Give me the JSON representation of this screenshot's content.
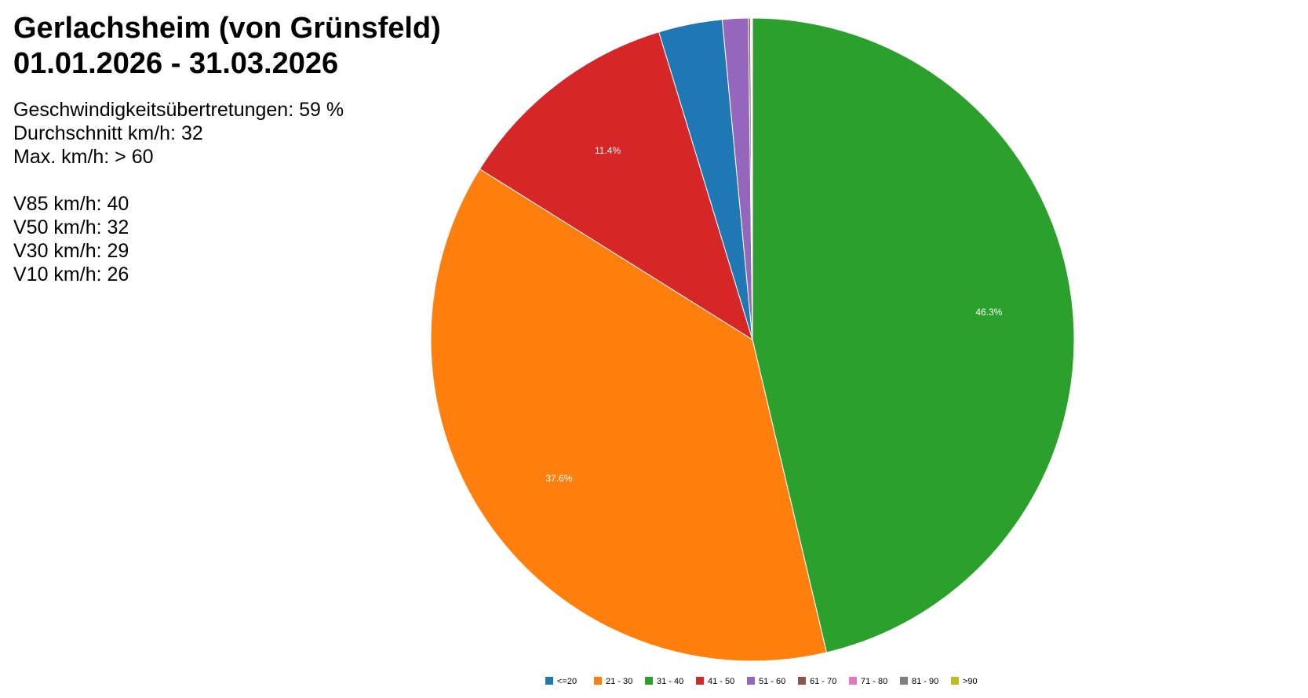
{
  "header": {
    "title_line1": "Gerlachsheim (von Grünsfeld)",
    "title_line2": "01.01.2026 - 31.03.2026"
  },
  "stats": {
    "violations": "Geschwindigkeitsübertretungen: 59 %",
    "average": "Durchschnitt km/h: 32",
    "max": "Max. km/h: > 60",
    "v85": "V85 km/h: 40",
    "v50": "V50 km/h: 32",
    "v30": "V30 km/h: 29",
    "v10": "V10 km/h: 26"
  },
  "chart_data": {
    "type": "pie",
    "title": "",
    "categories": [
      "<=20",
      "21 - 30",
      "31 - 40",
      "41 - 50",
      "51 - 60",
      "61 - 70",
      "71 - 80",
      "81 - 90",
      ">90"
    ],
    "values": [
      3.2,
      37.6,
      46.3,
      11.4,
      1.3,
      0.1,
      0.05,
      0.03,
      0.02
    ],
    "slice_labels": [
      "",
      "37.6%",
      "46.3%",
      "11.4%",
      "",
      "",
      "",
      "",
      ""
    ],
    "colors": [
      "#1f77b4",
      "#ff7f0e",
      "#2ca02c",
      "#d62728",
      "#9467bd",
      "#8c564b",
      "#e377c2",
      "#7f7f7f",
      "#bcbd22"
    ],
    "direction": "clockwise",
    "legend_position": "bottom"
  }
}
